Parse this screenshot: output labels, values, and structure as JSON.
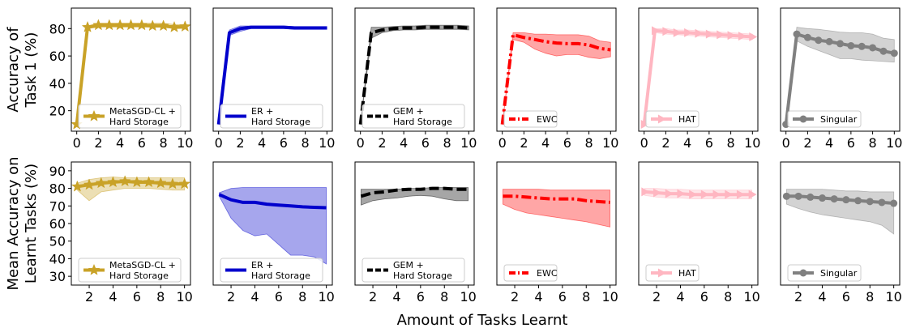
{
  "chart_data": {
    "type": "line",
    "xlabel": "Amount of Tasks Learnt",
    "rows": [
      {
        "ylabel": [
          "Accuracy of",
          "Task 1 (%)"
        ],
        "ylim": [
          5,
          95
        ],
        "yticks": [
          20,
          40,
          60,
          80
        ],
        "xlim": [
          -0.5,
          10.5
        ],
        "xticks": [
          0,
          2,
          4,
          6,
          8,
          10
        ]
      },
      {
        "ylabel": [
          "Mean Accuracy on",
          "Learnt Tasks (%)"
        ],
        "ylim": [
          25,
          95
        ],
        "yticks": [
          30,
          40,
          50,
          60,
          70,
          80,
          90
        ],
        "xlim": [
          0.5,
          10.5
        ],
        "xticks": [
          2,
          4,
          6,
          8,
          10
        ]
      }
    ],
    "series": [
      {
        "name": "MetaSGD-CL + Hard Storage",
        "legend": [
          "MetaSGD-CL +",
          "Hard Storage"
        ],
        "color": "#c9a227",
        "style": "solid",
        "marker": "star",
        "task1": {
          "x": [
            0,
            1,
            2,
            3,
            4,
            5,
            6,
            7,
            8,
            9,
            10
          ],
          "mean": [
            10,
            81,
            82.5,
            82.5,
            82.5,
            82.5,
            82.5,
            82,
            82,
            81,
            81.5
          ],
          "lower": [
            10,
            80,
            81,
            81,
            81,
            81,
            81,
            81,
            81,
            80,
            80
          ],
          "upper": [
            10,
            82,
            84,
            84,
            84,
            84,
            84,
            84,
            84,
            83,
            83
          ]
        },
        "mean_acc": {
          "x": [
            1,
            2,
            3,
            4,
            5,
            6,
            7,
            8,
            9,
            10
          ],
          "mean": [
            81,
            82,
            83,
            83.5,
            84,
            83.5,
            83.5,
            83,
            82.5,
            82.5
          ],
          "lower": [
            79,
            73,
            78,
            79,
            80,
            80,
            80,
            79.5,
            79,
            79
          ],
          "upper": [
            83,
            85,
            86,
            86.5,
            86,
            86,
            86,
            86,
            86,
            86
          ]
        }
      },
      {
        "name": "ER + Hard Storage",
        "legend": [
          "ER +",
          "Hard Storage"
        ],
        "color": "#0000cc",
        "style": "solid",
        "marker": "none",
        "task1": {
          "x": [
            0,
            1,
            2,
            3,
            4,
            5,
            6,
            7,
            8,
            9,
            10
          ],
          "mean": [
            10,
            77,
            80,
            81,
            81,
            81,
            81,
            80.5,
            80.5,
            80.5,
            80.5
          ],
          "lower": [
            10,
            75,
            78,
            80,
            80,
            80,
            80,
            79.5,
            79.5,
            79.5,
            79.5
          ],
          "upper": [
            10,
            79,
            82,
            82,
            82,
            82,
            82,
            81.5,
            81.5,
            81.5,
            81.5
          ]
        },
        "mean_acc": {
          "x": [
            1,
            2,
            3,
            4,
            5,
            6,
            7,
            8,
            9,
            10
          ],
          "mean": [
            76.5,
            73.5,
            72,
            72,
            71,
            70.5,
            70,
            69.5,
            69.2,
            69
          ],
          "lower": [
            75.5,
            63,
            56,
            53,
            54,
            48,
            42,
            42,
            41,
            37
          ],
          "upper": [
            77.5,
            80,
            80.5,
            80.5,
            80.5,
            80.5,
            80.5,
            80.5,
            80.5,
            80.5
          ]
        }
      },
      {
        "name": "GEM + Hard Storage",
        "legend": [
          "GEM +",
          "Hard Storage"
        ],
        "color": "#000000",
        "style": "dashed",
        "marker": "none",
        "task1": {
          "x": [
            0,
            1,
            2,
            3,
            4,
            5,
            6,
            7,
            8,
            9,
            10
          ],
          "mean": [
            10,
            77,
            79,
            80,
            80.5,
            80.5,
            81,
            81,
            81,
            81,
            80.5
          ],
          "lower": [
            10,
            73,
            77,
            78.5,
            79,
            79,
            79.5,
            79.5,
            79.5,
            79.5,
            79
          ],
          "upper": [
            10,
            81,
            81,
            81.5,
            82,
            82,
            82.5,
            82.5,
            82.5,
            82.5,
            82
          ]
        },
        "mean_acc": {
          "x": [
            1,
            2,
            3,
            4,
            5,
            6,
            7,
            8,
            9,
            10
          ],
          "mean": [
            75.5,
            77.5,
            78,
            79,
            79.5,
            79.5,
            80,
            80,
            79.5,
            79.5
          ],
          "lower": [
            70.5,
            73,
            74,
            74.5,
            75.5,
            76,
            75.5,
            74,
            73,
            73
          ],
          "upper": [
            79.5,
            79.5,
            79.5,
            79.5,
            80,
            80,
            80.5,
            80.5,
            80.5,
            80.5
          ]
        }
      },
      {
        "name": "EWC",
        "legend": [
          "EWC"
        ],
        "color": "#ff0000",
        "style": "dashdot",
        "marker": "none",
        "task1": {
          "x": [
            0,
            1,
            2,
            3,
            4,
            5,
            6,
            7,
            8,
            9,
            10
          ],
          "mean": [
            10,
            75.5,
            73.5,
            72,
            70.5,
            69.5,
            69,
            69,
            68,
            65.5,
            64.5
          ],
          "lower": [
            10,
            72,
            70,
            65,
            62,
            60,
            61,
            61,
            59,
            58,
            59.5
          ],
          "upper": [
            10,
            77,
            77,
            76,
            76,
            75.5,
            75.5,
            75.5,
            74.5,
            71,
            70
          ]
        },
        "mean_acc": {
          "x": [
            1,
            2,
            3,
            4,
            5,
            6,
            7,
            8,
            9,
            10
          ],
          "mean": [
            75.5,
            75.5,
            75,
            74.5,
            74,
            74,
            74,
            73,
            72.5,
            72
          ],
          "lower": [
            71,
            68,
            66,
            65,
            64,
            63,
            62,
            61,
            59.5,
            58
          ],
          "upper": [
            79.5,
            79.5,
            79.5,
            79.5,
            79,
            79,
            79,
            79,
            79,
            79
          ]
        }
      },
      {
        "name": "HAT",
        "legend": [
          "HAT"
        ],
        "color": "#ffb6c1",
        "style": "solid",
        "marker": "triangle",
        "task1": {
          "x": [
            0,
            1,
            2,
            3,
            4,
            5,
            6,
            7,
            8,
            9,
            10
          ],
          "mean": [
            10,
            78.5,
            78,
            77,
            77,
            76.5,
            76,
            75.5,
            75,
            74.5,
            74
          ],
          "lower": [
            10,
            77,
            76,
            75.5,
            75,
            74.5,
            74,
            73.5,
            73,
            72.5,
            72
          ],
          "upper": [
            10,
            80,
            80,
            79,
            79,
            78.5,
            78,
            77.5,
            77,
            76.5,
            76
          ]
        },
        "mean_acc": {
          "x": [
            1,
            2,
            3,
            4,
            5,
            6,
            7,
            8,
            9,
            10
          ],
          "mean": [
            78,
            77.5,
            77,
            77,
            76.5,
            76.5,
            76.5,
            76.5,
            76.5,
            76.5
          ],
          "lower": [
            76,
            75,
            74.5,
            74.5,
            74,
            74,
            74,
            74,
            74,
            74
          ],
          "upper": [
            80,
            80,
            79.5,
            79.5,
            79,
            79,
            79,
            79,
            79,
            79
          ]
        }
      },
      {
        "name": "Singular",
        "legend": [
          "Singular"
        ],
        "color": "#808080",
        "style": "solid",
        "marker": "circle",
        "task1": {
          "x": [
            0,
            1,
            2,
            3,
            4,
            5,
            6,
            7,
            8,
            9,
            10
          ],
          "mean": [
            10,
            76,
            73.5,
            71.5,
            70.5,
            69,
            67.5,
            67,
            66,
            63.5,
            62
          ],
          "lower": [
            10,
            71,
            67,
            64,
            61,
            58,
            58,
            57,
            56.5,
            56,
            55.5
          ],
          "upper": [
            10,
            81,
            80,
            79.5,
            78.5,
            77.5,
            77,
            77,
            76,
            73,
            72
          ]
        },
        "mean_acc": {
          "x": [
            1,
            2,
            3,
            4,
            5,
            6,
            7,
            8,
            9,
            10
          ],
          "mean": [
            75.5,
            75.5,
            75,
            74.5,
            74,
            73.5,
            73,
            72.5,
            72,
            71.5
          ],
          "lower": [
            71,
            68.5,
            66.5,
            65,
            64,
            63,
            62,
            61,
            59,
            54
          ],
          "upper": [
            79.5,
            79.5,
            79.5,
            79.5,
            79,
            78.5,
            78.5,
            78,
            78,
            78
          ]
        }
      }
    ]
  }
}
